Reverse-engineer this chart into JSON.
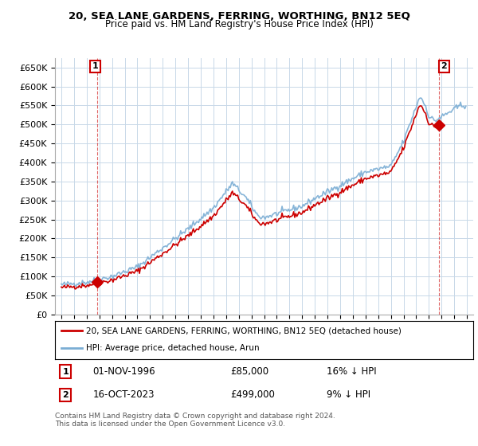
{
  "title": "20, SEA LANE GARDENS, FERRING, WORTHING, BN12 5EQ",
  "subtitle": "Price paid vs. HM Land Registry's House Price Index (HPI)",
  "hpi_label": "HPI: Average price, detached house, Arun",
  "property_label": "20, SEA LANE GARDENS, FERRING, WORTHING, BN12 5EQ (detached house)",
  "sale1_date": "01-NOV-1996",
  "sale1_price": "£85,000",
  "sale1_hpi": "16% ↓ HPI",
  "sale2_date": "16-OCT-2023",
  "sale2_price": "£499,000",
  "sale2_hpi": "9% ↓ HPI",
  "annotation1": "1",
  "annotation2": "2",
  "sale1_year": 1996.83,
  "sale1_value": 85000,
  "sale2_year": 2023.79,
  "sale2_value": 499000,
  "ylim": [
    0,
    675000
  ],
  "xlim_start": 1993.5,
  "xlim_end": 2026.5,
  "hpi_color": "#7aadd4",
  "property_color": "#cc0000",
  "grid_color": "#c8d8e8",
  "background_color": "#ffffff",
  "plot_bg_color": "#ffffff",
  "footer": "Contains HM Land Registry data © Crown copyright and database right 2024.\nThis data is licensed under the Open Government Licence v3.0.",
  "yticks": [
    0,
    50000,
    100000,
    150000,
    200000,
    250000,
    300000,
    350000,
    400000,
    450000,
    500000,
    550000,
    600000,
    650000
  ],
  "ytick_labels": [
    "£0",
    "£50K",
    "£100K",
    "£150K",
    "£200K",
    "£250K",
    "£300K",
    "£350K",
    "£400K",
    "£450K",
    "£500K",
    "£550K",
    "£600K",
    "£650K"
  ]
}
